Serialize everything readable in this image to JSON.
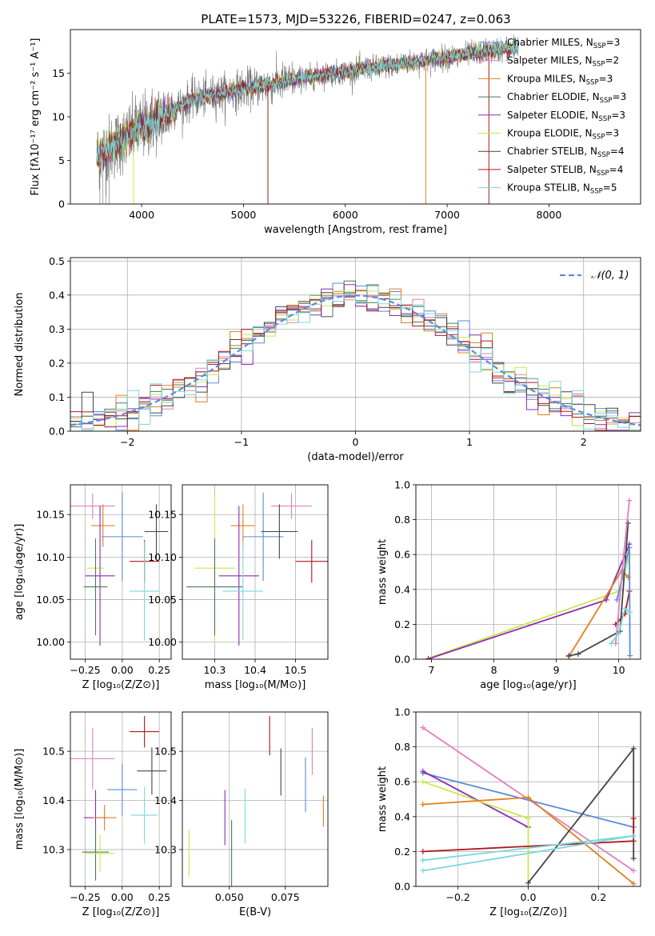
{
  "title": "PLATE=1573, MJD=53226, FIBERID=0247, z=0.063",
  "colors": {
    "chabrier_miles": "#5b8bde",
    "salpeter_miles": "#e07fc0",
    "kroupa_miles": "#e08020",
    "chabrier_elodie": "#4a7a5a",
    "salpeter_elodie": "#8a2cb0",
    "kroupa_elodie": "#c8e84a",
    "chabrier_stelib": "#444444",
    "salpeter_stelib": "#b01818",
    "kroupa_stelib": "#7ad8dc",
    "gauss": "#5b8bde",
    "grid": "#b0b0b0"
  },
  "chart_data": [
    {
      "id": "spectrum",
      "type": "line",
      "xlabel": "wavelength [Angstrom, rest frame]",
      "ylabel": "Flux [fλ10⁻¹⁷ erg cm⁻² s⁻¹ A⁻¹]",
      "xlim": [
        3300,
        8900
      ],
      "ylim": [
        0,
        20
      ],
      "xticks": [
        "4000",
        "5000",
        "6000",
        "7000",
        "8000"
      ],
      "yticks": [
        "0",
        "5",
        "10",
        "15"
      ],
      "grid": false,
      "legend_position": "top-right",
      "legend": [
        {
          "label": "Chabrier MILES, N",
          "sub": "SSP",
          "suffix": "=3",
          "key": "chabrier_miles"
        },
        {
          "label": "Salpeter MILES, N",
          "sub": "SSP",
          "suffix": "=2",
          "key": "salpeter_miles"
        },
        {
          "label": "Kroupa MILES, N",
          "sub": "SSP",
          "suffix": "=3",
          "key": "kroupa_miles"
        },
        {
          "label": "Chabrier ELODIE, N",
          "sub": "SSP",
          "suffix": "=3",
          "key": "chabrier_elodie"
        },
        {
          "label": "Salpeter ELODIE, N",
          "sub": "SSP",
          "suffix": "=3",
          "key": "salpeter_elodie"
        },
        {
          "label": "Kroupa ELODIE, N",
          "sub": "SSP",
          "suffix": "=3",
          "key": "kroupa_elodie"
        },
        {
          "label": "Chabrier STELIB, N",
          "sub": "SSP",
          "suffix": "=4",
          "key": "chabrier_stelib"
        },
        {
          "label": "Salpeter STELIB, N",
          "sub": "SSP",
          "suffix": "=4",
          "key": "salpeter_stelib"
        },
        {
          "label": "Kroupa STELIB, N",
          "sub": "SSP",
          "suffix": "=5",
          "key": "kroupa_stelib"
        }
      ],
      "continuum": [
        [
          3560,
          5.5
        ],
        [
          3700,
          6.5
        ],
        [
          3900,
          8.0
        ],
        [
          4100,
          9.5
        ],
        [
          4300,
          10.8
        ],
        [
          4500,
          12.0
        ],
        [
          4800,
          12.7
        ],
        [
          5000,
          13.2
        ],
        [
          5300,
          13.8
        ],
        [
          5600,
          14.5
        ],
        [
          5900,
          15.0
        ],
        [
          6200,
          15.5
        ],
        [
          6500,
          16.0
        ],
        [
          6800,
          16.5
        ],
        [
          7100,
          17.0
        ],
        [
          7400,
          17.5
        ],
        [
          7700,
          18.0
        ]
      ],
      "model_cutoffs": [
        {
          "key": "kroupa_miles",
          "x": 6790
        },
        {
          "key": "salpeter_stelib",
          "x": 7410
        },
        {
          "key": "kroupa_elodie",
          "x": 3920
        },
        {
          "key": "salpeter_stelib",
          "x": 5240
        }
      ]
    },
    {
      "id": "residuals",
      "type": "step-histogram",
      "xlabel": "(data-model)/error",
      "ylabel": "Normed distribution",
      "xlim": [
        -2.5,
        2.5
      ],
      "ylim": [
        0,
        0.51
      ],
      "xticks": [
        "−2",
        "−1",
        "0",
        "1",
        "2"
      ],
      "yticks": [
        "0.0",
        "0.1",
        "0.2",
        "0.3",
        "0.4",
        "0.5"
      ],
      "grid": true,
      "legend_position": "top-right",
      "legend": [
        {
          "label": "𝒩(0, 1)",
          "key": "gauss"
        }
      ],
      "bin_width": 0.1,
      "bin_start": -2.5
    },
    {
      "id": "age_vs_z",
      "type": "scatter-errorbar",
      "xlabel": "Z [log₁₀(Z/Z⊙)]",
      "ylabel": "age  [log₁₀(age/yr)]",
      "xlim": [
        -0.35,
        0.33
      ],
      "ylim": [
        9.98,
        10.185
      ],
      "xticks": [
        "−0.25",
        "0.00",
        "0.25"
      ],
      "yticks": [
        "10.00",
        "10.05",
        "10.10",
        "10.15"
      ],
      "points": [
        {
          "key": "salpeter_miles",
          "x": -0.2,
          "y": 10.16,
          "xe": 0.15,
          "ye": 0.015
        },
        {
          "key": "kroupa_miles",
          "x": -0.13,
          "y": 10.137,
          "xe": 0.08,
          "ye": 0.025
        },
        {
          "key": "chabrier_miles",
          "x": 0.0,
          "y": 10.124,
          "xe": 0.14,
          "ye": 0.052
        },
        {
          "key": "chabrier_stelib",
          "x": 0.23,
          "y": 10.13,
          "xe": 0.08,
          "ye": 0.032
        },
        {
          "key": "salpeter_stelib",
          "x": 0.15,
          "y": 10.095,
          "xe": 0.1,
          "ye": 0.025
        },
        {
          "key": "kroupa_elodie",
          "x": -0.18,
          "y": 10.087,
          "xe": 0.06,
          "ye": 0.018
        },
        {
          "key": "salpeter_elodie",
          "x": -0.15,
          "y": 10.078,
          "xe": 0.1,
          "ye": 0.082
        },
        {
          "key": "chabrier_elodie",
          "x": -0.18,
          "y": 10.065,
          "xe": 0.08,
          "ye": 0.057
        },
        {
          "key": "kroupa_stelib",
          "x": 0.15,
          "y": 10.06,
          "xe": 0.1,
          "ye": 0.058
        }
      ]
    },
    {
      "id": "age_vs_mass",
      "type": "scatter-errorbar",
      "xlabel": "mass [log₁₀(M/M⊙)]",
      "ylabel": "",
      "xlim": [
        10.22,
        10.58
      ],
      "ylim": [
        9.98,
        10.185
      ],
      "xticks": [
        "10.3",
        "10.4",
        "10.5"
      ],
      "yticks": [
        "10.00",
        "10.05",
        "10.10",
        "10.15"
      ],
      "points": [
        {
          "key": "salpeter_miles",
          "x": 10.49,
          "y": 10.16,
          "xe": 0.05,
          "ye": 0.015
        },
        {
          "key": "kroupa_miles",
          "x": 10.37,
          "y": 10.137,
          "xe": 0.03,
          "ye": 0.025
        },
        {
          "key": "chabrier_miles",
          "x": 10.42,
          "y": 10.124,
          "xe": 0.05,
          "ye": 0.052
        },
        {
          "key": "chabrier_stelib",
          "x": 10.46,
          "y": 10.13,
          "xe": 0.045,
          "ye": 0.032
        },
        {
          "key": "salpeter_stelib",
          "x": 10.54,
          "y": 10.095,
          "xe": 0.04,
          "ye": 0.025
        },
        {
          "key": "kroupa_elodie",
          "x": 10.3,
          "y": 10.087,
          "xe": 0.05,
          "ye": 0.088
        },
        {
          "key": "salpeter_elodie",
          "x": 10.36,
          "y": 10.078,
          "xe": 0.05,
          "ye": 0.082
        },
        {
          "key": "chabrier_elodie",
          "x": 10.3,
          "y": 10.065,
          "xe": 0.07,
          "ye": 0.057
        },
        {
          "key": "kroupa_stelib",
          "x": 10.37,
          "y": 10.06,
          "xe": 0.05,
          "ye": 0.058
        }
      ]
    },
    {
      "id": "weight_vs_age",
      "type": "line",
      "xlabel": "age  [log₁₀(age/yr)]",
      "ylabel": "mass weight",
      "xlim": [
        6.75,
        10.35
      ],
      "ylim": [
        0,
        1
      ],
      "xticks": [
        "7",
        "8",
        "9",
        "10"
      ],
      "yticks": [
        "0.0",
        "0.2",
        "0.4",
        "0.6",
        "0.8",
        "1.0"
      ],
      "grid": true,
      "series": [
        {
          "key": "kroupa_elodie",
          "points": [
            [
              6.95,
              0.005
            ],
            [
              10.0,
              0.39
            ],
            [
              10.18,
              0.6
            ]
          ]
        },
        {
          "key": "salpeter_elodie",
          "points": [
            [
              6.95,
              0.002
            ],
            [
              9.8,
              0.34
            ],
            [
              10.17,
              0.66
            ]
          ]
        },
        {
          "key": "kroupa_miles",
          "points": [
            [
              9.2,
              0.015
            ],
            [
              10.05,
              0.51
            ],
            [
              10.15,
              0.47
            ]
          ]
        },
        {
          "key": "chabrier_stelib",
          "points": [
            [
              9.2,
              0.02
            ],
            [
              9.35,
              0.03
            ],
            [
              10.02,
              0.16
            ],
            [
              10.15,
              0.78
            ]
          ]
        },
        {
          "key": "salpeter_stelib",
          "points": [
            [
              9.95,
              0.2
            ],
            [
              10.1,
              0.26
            ],
            [
              10.17,
              0.39
            ]
          ]
        },
        {
          "key": "chabrier_miles",
          "points": [
            [
              9.97,
              0.34
            ],
            [
              10.17,
              0.64
            ],
            [
              10.18,
              0.02
            ]
          ]
        },
        {
          "key": "salpeter_miles",
          "points": [
            [
              9.95,
              0.09
            ],
            [
              10.08,
              0.6
            ],
            [
              10.17,
              0.91
            ]
          ]
        },
        {
          "key": "kroupa_stelib",
          "points": [
            [
              9.88,
              0.09
            ],
            [
              10.0,
              0.15
            ],
            [
              10.1,
              0.29
            ],
            [
              10.18,
              0.27
            ]
          ]
        }
      ]
    },
    {
      "id": "mass_vs_z",
      "type": "scatter-errorbar",
      "xlabel": "Z [log₁₀(Z/Z⊙)]",
      "ylabel": "mass [log₁₀(M/M⊙)]",
      "xlim": [
        -0.35,
        0.33
      ],
      "ylim": [
        10.225,
        10.58
      ],
      "xticks": [
        "−0.25",
        "0.00",
        "0.25"
      ],
      "yticks": [
        "10.3",
        "10.4",
        "10.5"
      ],
      "points": [
        {
          "key": "salpeter_stelib",
          "x": 0.15,
          "y": 10.54,
          "xe": 0.1,
          "ye": 0.032
        },
        {
          "key": "salpeter_miles",
          "x": -0.2,
          "y": 10.485,
          "xe": 0.15,
          "ye": 0.062
        },
        {
          "key": "chabrier_stelib",
          "x": 0.2,
          "y": 10.46,
          "xe": 0.1,
          "ye": 0.048
        },
        {
          "key": "chabrier_miles",
          "x": 0.0,
          "y": 10.422,
          "xe": 0.1,
          "ye": 0.053
        },
        {
          "key": "kroupa_stelib",
          "x": 0.15,
          "y": 10.37,
          "xe": 0.09,
          "ye": 0.058
        },
        {
          "key": "salpeter_elodie",
          "x": -0.18,
          "y": 10.365,
          "xe": 0.08,
          "ye": 0.056
        },
        {
          "key": "kroupa_miles",
          "x": -0.12,
          "y": 10.365,
          "xe": 0.08,
          "ye": 0.026
        },
        {
          "key": "chabrier_elodie",
          "x": -0.18,
          "y": 10.295,
          "xe": 0.09,
          "ye": 0.058
        },
        {
          "key": "kroupa_elodie",
          "x": -0.15,
          "y": 10.292,
          "xe": 0.1,
          "ye": 0.038
        }
      ]
    },
    {
      "id": "mass_vs_ebv",
      "type": "errorbar",
      "xlabel": "E(B-V)",
      "ylabel": "",
      "xlim": [
        0.029,
        0.094
      ],
      "ylim": [
        10.225,
        10.58
      ],
      "xticks": [
        "0.050",
        "0.075"
      ],
      "yticks": [
        "10.3",
        "10.4",
        "10.5"
      ],
      "grid": true,
      "points": [
        {
          "key": "kroupa_elodie",
          "x": 0.032,
          "y": 10.292,
          "ye": 0.048
        },
        {
          "key": "salpeter_elodie",
          "x": 0.048,
          "y": 10.365,
          "ye": 0.056
        },
        {
          "key": "chabrier_elodie",
          "x": 0.051,
          "y": 10.29,
          "ye": 0.07
        },
        {
          "key": "kroupa_stelib",
          "x": 0.057,
          "y": 10.368,
          "ye": 0.056
        },
        {
          "key": "salpeter_stelib",
          "x": 0.068,
          "y": 10.532,
          "ye": 0.04
        },
        {
          "key": "chabrier_stelib",
          "x": 0.073,
          "y": 10.458,
          "ye": 0.048
        },
        {
          "key": "chabrier_miles",
          "x": 0.084,
          "y": 10.432,
          "ye": 0.056
        },
        {
          "key": "salpeter_miles",
          "x": 0.087,
          "y": 10.5,
          "ye": 0.048
        },
        {
          "key": "kroupa_miles",
          "x": 0.092,
          "y": 10.378,
          "ye": 0.032
        }
      ]
    },
    {
      "id": "weight_vs_z",
      "type": "line",
      "xlabel": "Z [log₁₀(Z/Z⊙)]",
      "ylabel": "mass weight",
      "xlim": [
        -0.32,
        0.32
      ],
      "ylim": [
        0,
        1
      ],
      "xticks": [
        "−0.2",
        "0.0",
        "0.2"
      ],
      "yticks": [
        "0.0",
        "0.2",
        "0.4",
        "0.6",
        "0.8",
        "1.0"
      ],
      "grid": true,
      "series": [
        {
          "key": "salpeter_miles",
          "points": [
            [
              -0.3,
              0.91
            ],
            [
              0.3,
              0.09
            ]
          ]
        },
        {
          "key": "chabrier_miles",
          "points": [
            [
              -0.3,
              0.65
            ],
            [
              0.3,
              0.34
            ]
          ]
        },
        {
          "key": "salpeter_elodie",
          "points": [
            [
              -0.3,
              0.66
            ],
            [
              0.0,
              0.34
            ]
          ]
        },
        {
          "key": "kroupa_elodie",
          "points": [
            [
              -0.3,
              0.6
            ],
            [
              0.0,
              0.39
            ],
            [
              0.0,
              0.0
            ]
          ]
        },
        {
          "key": "kroupa_miles",
          "points": [
            [
              -0.3,
              0.47
            ],
            [
              0.0,
              0.51
            ],
            [
              0.3,
              0.015
            ]
          ]
        },
        {
          "key": "chabrier_stelib",
          "points": [
            [
              0.0,
              0.02
            ],
            [
              0.3,
              0.79
            ],
            [
              0.3,
              0.16
            ]
          ]
        },
        {
          "key": "salpeter_stelib",
          "points": [
            [
              -0.3,
              0.2
            ],
            [
              0.3,
              0.26
            ],
            [
              0.3,
              0.39
            ]
          ]
        },
        {
          "key": "kroupa_stelib",
          "points": [
            [
              -0.3,
              0.15
            ],
            [
              0.3,
              0.29
            ],
            [
              -0.3,
              0.09
            ]
          ]
        }
      ]
    }
  ]
}
